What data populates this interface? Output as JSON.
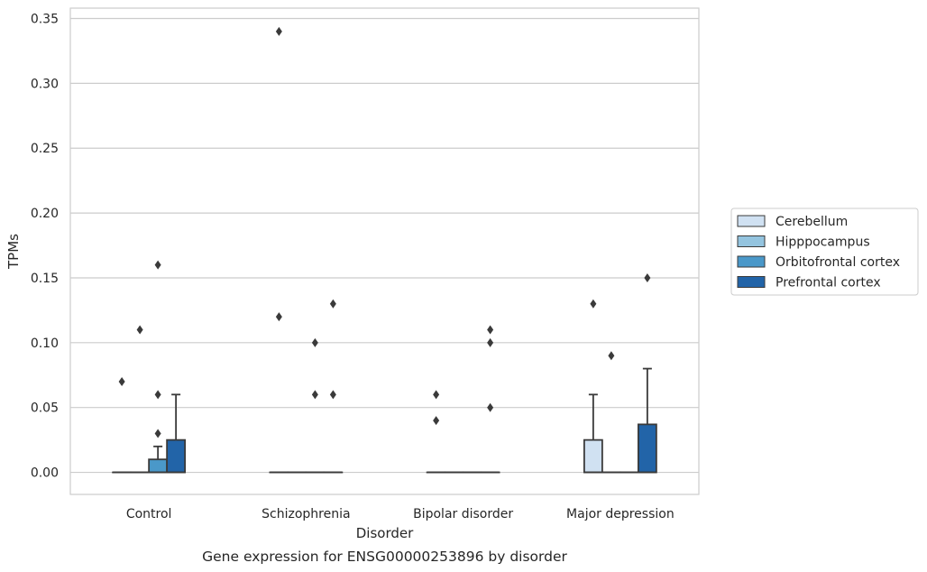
{
  "caption": "Gene expression for ENSG00000253896 by disorder",
  "colors": {
    "Cerebellum": "#d0e1f2",
    "Hipppocampus": "#94c4df",
    "Orbitofrontal cortex": "#4a98c9",
    "Prefrontal cortex": "#2264a8",
    "grid": "#cccccc",
    "frame": "#cccccc",
    "box_edge": "#3a3a3a",
    "outlier": "#3a3a3a"
  },
  "chart_data": {
    "type": "box",
    "xlabel": "Disorder",
    "ylabel": "TPMs",
    "ylim": [
      -0.017,
      0.358
    ],
    "yticks": [
      "0.00",
      "0.05",
      "0.10",
      "0.15",
      "0.20",
      "0.25",
      "0.30",
      "0.35"
    ],
    "grid": "horizontal",
    "legend_position": "right",
    "categories": [
      "Control",
      "Schizophrenia",
      "Bipolar disorder",
      "Major depression"
    ],
    "series": [
      {
        "name": "Cerebellum",
        "boxes": [
          {
            "q1": 0,
            "median": 0,
            "q3": 0,
            "whisker_low": 0,
            "whisker_high": 0,
            "outliers": [
              0.07
            ]
          },
          {
            "q1": 0,
            "median": 0,
            "q3": 0,
            "whisker_low": 0,
            "whisker_high": 0,
            "outliers": [
              0.34,
              0.12
            ]
          },
          {
            "q1": 0,
            "median": 0,
            "q3": 0,
            "whisker_low": 0,
            "whisker_high": 0,
            "outliers": [
              0.06,
              0.04
            ]
          },
          {
            "q1": 0,
            "median": 0,
            "q3": 0.025,
            "whisker_low": 0,
            "whisker_high": 0.06,
            "outliers": [
              0.13
            ]
          }
        ]
      },
      {
        "name": "Hipppocampus",
        "boxes": [
          {
            "q1": 0,
            "median": 0,
            "q3": 0,
            "whisker_low": 0,
            "whisker_high": 0,
            "outliers": [
              0.11
            ]
          },
          {
            "q1": 0,
            "median": 0,
            "q3": 0,
            "whisker_low": 0,
            "whisker_high": 0,
            "outliers": []
          },
          {
            "q1": 0,
            "median": 0,
            "q3": 0,
            "whisker_low": 0,
            "whisker_high": 0,
            "outliers": []
          },
          {
            "q1": 0,
            "median": 0,
            "q3": 0,
            "whisker_low": 0,
            "whisker_high": 0,
            "outliers": [
              0.09
            ]
          }
        ]
      },
      {
        "name": "Orbitofrontal cortex",
        "boxes": [
          {
            "q1": 0,
            "median": 0,
            "q3": 0.01,
            "whisker_low": 0,
            "whisker_high": 0.02,
            "outliers": [
              0.16,
              0.06,
              0.03
            ]
          },
          {
            "q1": 0,
            "median": 0,
            "q3": 0,
            "whisker_low": 0,
            "whisker_high": 0,
            "outliers": [
              0.1,
              0.06
            ]
          },
          {
            "q1": 0,
            "median": 0,
            "q3": 0,
            "whisker_low": 0,
            "whisker_high": 0,
            "outliers": []
          },
          {
            "q1": 0,
            "median": 0,
            "q3": 0,
            "whisker_low": 0,
            "whisker_high": 0,
            "outliers": []
          }
        ]
      },
      {
        "name": "Prefrontal cortex",
        "boxes": [
          {
            "q1": 0,
            "median": 0,
            "q3": 0.025,
            "whisker_low": 0,
            "whisker_high": 0.06,
            "outliers": []
          },
          {
            "q1": 0,
            "median": 0,
            "q3": 0,
            "whisker_low": 0,
            "whisker_high": 0,
            "outliers": [
              0.13,
              0.06
            ]
          },
          {
            "q1": 0,
            "median": 0,
            "q3": 0,
            "whisker_low": 0,
            "whisker_high": 0,
            "outliers": [
              0.11,
              0.1,
              0.05
            ]
          },
          {
            "q1": 0,
            "median": 0,
            "q3": 0.037,
            "whisker_low": 0,
            "whisker_high": 0.08,
            "outliers": [
              0.15
            ]
          }
        ]
      }
    ]
  }
}
